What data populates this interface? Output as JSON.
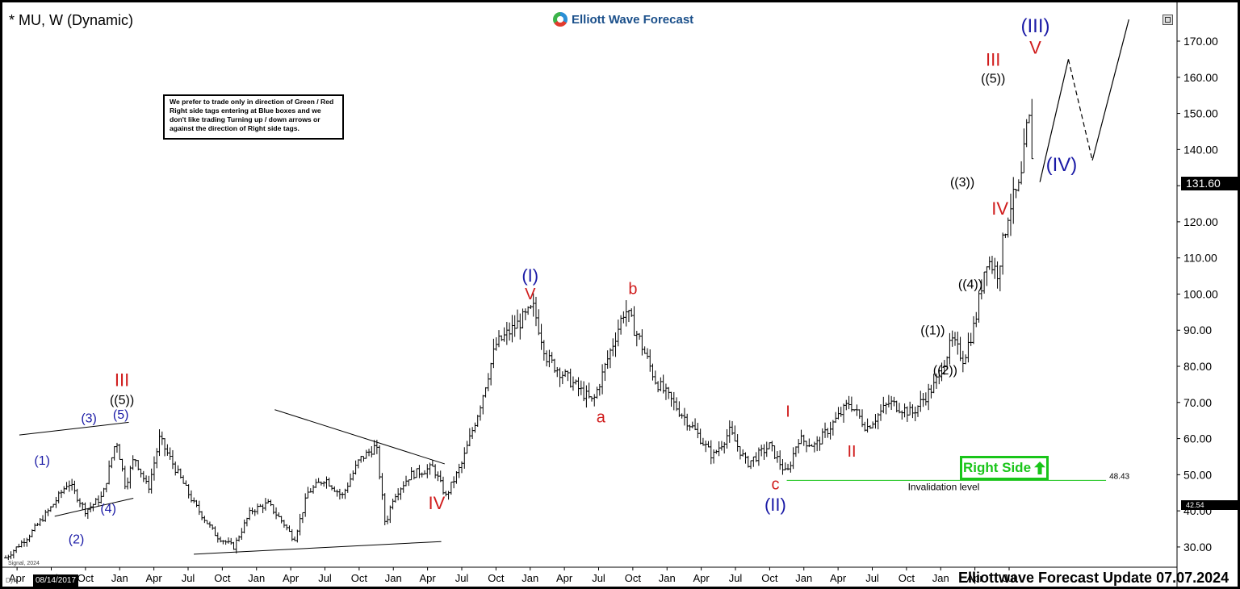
{
  "header": {
    "title": "* MU, W (Dynamic)",
    "brand": "Elliott Wave Forecast"
  },
  "note_text": "We prefer to trade only in direction of Green / Red Right side tags entering at Blue boxes and we don't like trading Turning up / down arrows or against the direction of Right side tags.",
  "right_side_tag": {
    "label": "Right Side",
    "color": "#19c519",
    "level": "48.43"
  },
  "invalidation_label": "Invalidation level",
  "footer": {
    "update": "Elliottwave Forecast Update 07.07.2024",
    "date_box": "08/14/2017",
    "watermark": "Signal, 2024",
    "dyn": "Dyn"
  },
  "price_tags": {
    "last": "131.60",
    "low_marker": "42.54"
  },
  "colors": {
    "wave_blue": "#1a1aa6",
    "wave_red": "#d01c1c",
    "wave_black": "#000000",
    "accent_green": "#19c519",
    "grid_bg": "#ffffff"
  },
  "chart_data": {
    "type": "ohlc",
    "ylim": [
      26,
      176
    ],
    "y_ticks": [
      "30.00",
      "40.00",
      "50.00",
      "60.00",
      "70.00",
      "80.00",
      "90.00",
      "100.00",
      "110.00",
      "120.00",
      "130.00",
      "140.00",
      "150.00",
      "160.00",
      "170.00"
    ],
    "x_ticks": [
      "Apr",
      "Jul",
      "Oct",
      "Jan",
      "Apr",
      "Jul",
      "Oct",
      "Jan",
      "Apr",
      "Jul",
      "Oct",
      "Jan",
      "Apr",
      "Jul",
      "Oct",
      "Jan",
      "Apr",
      "Jul",
      "Oct",
      "Jan",
      "Apr",
      "Jul",
      "Oct",
      "Jan",
      "Apr",
      "Jul",
      "Oct",
      "Jan",
      "Apr",
      "Jul"
    ],
    "x_start": "2017-03",
    "bars_per_month": 4.3,
    "price_path": [
      {
        "m": 0,
        "p": 27
      },
      {
        "m": 2,
        "p": 33
      },
      {
        "m": 4,
        "p": 41
      },
      {
        "m": 5.5,
        "p": 48
      },
      {
        "m": 7,
        "p": 40
      },
      {
        "m": 8.5,
        "p": 44
      },
      {
        "m": 9.7,
        "p": 60
      },
      {
        "m": 10.5,
        "p": 47
      },
      {
        "m": 11.3,
        "p": 55
      },
      {
        "m": 12.5,
        "p": 46
      },
      {
        "m": 13.5,
        "p": 60
      },
      {
        "m": 14.5,
        "p": 54
      },
      {
        "m": 16.5,
        "p": 42
      },
      {
        "m": 18.5,
        "p": 33
      },
      {
        "m": 20,
        "p": 30
      },
      {
        "m": 21.5,
        "p": 40
      },
      {
        "m": 23,
        "p": 42
      },
      {
        "m": 24.5,
        "p": 36
      },
      {
        "m": 25.3,
        "p": 32
      },
      {
        "m": 26.5,
        "p": 45
      },
      {
        "m": 28,
        "p": 49
      },
      {
        "m": 29.5,
        "p": 44
      },
      {
        "m": 31,
        "p": 54
      },
      {
        "m": 32.5,
        "p": 58
      },
      {
        "m": 33.3,
        "p": 36
      },
      {
        "m": 34,
        "p": 44
      },
      {
        "m": 35.5,
        "p": 50
      },
      {
        "m": 37.5,
        "p": 52
      },
      {
        "m": 38.6,
        "p": 44
      },
      {
        "m": 40,
        "p": 53
      },
      {
        "m": 41.5,
        "p": 68
      },
      {
        "m": 43,
        "p": 86
      },
      {
        "m": 45,
        "p": 92
      },
      {
        "m": 46.3,
        "p": 96
      },
      {
        "m": 47.5,
        "p": 82
      },
      {
        "m": 49.5,
        "p": 76
      },
      {
        "m": 51.5,
        "p": 70
      },
      {
        "m": 53,
        "p": 84
      },
      {
        "m": 54.3,
        "p": 96
      },
      {
        "m": 55.5,
        "p": 88
      },
      {
        "m": 57,
        "p": 76
      },
      {
        "m": 59,
        "p": 68
      },
      {
        "m": 60.5,
        "p": 62
      },
      {
        "m": 62,
        "p": 55
      },
      {
        "m": 63.5,
        "p": 62
      },
      {
        "m": 65,
        "p": 53
      },
      {
        "m": 67,
        "p": 58
      },
      {
        "m": 68.5,
        "p": 50
      },
      {
        "m": 69.5,
        "p": 60
      },
      {
        "m": 71,
        "p": 58
      },
      {
        "m": 72.5,
        "p": 64
      },
      {
        "m": 74,
        "p": 70
      },
      {
        "m": 75.5,
        "p": 63
      },
      {
        "m": 77.5,
        "p": 70
      },
      {
        "m": 79.5,
        "p": 67
      },
      {
        "m": 81.5,
        "p": 75
      },
      {
        "m": 83,
        "p": 87
      },
      {
        "m": 84,
        "p": 82
      },
      {
        "m": 85,
        "p": 92
      },
      {
        "m": 86,
        "p": 110
      },
      {
        "m": 87,
        "p": 106
      },
      {
        "m": 88,
        "p": 124
      },
      {
        "m": 89,
        "p": 130
      },
      {
        "m": 89.7,
        "p": 150
      },
      {
        "m": 90.2,
        "p": 132
      }
    ],
    "projection": [
      {
        "m": 90.7,
        "p": 131
      },
      {
        "m": 93.2,
        "p": 165
      },
      {
        "m": 95.3,
        "p": 137
      },
      {
        "m": 98.5,
        "p": 176
      }
    ],
    "trendlines": [
      {
        "from": {
          "m": 1.2,
          "p": 61
        },
        "to": {
          "m": 10.8,
          "p": 64.5
        }
      },
      {
        "from": {
          "m": 4.3,
          "p": 38.5
        },
        "to": {
          "m": 11.2,
          "p": 43.5
        }
      },
      {
        "from": {
          "m": 23.6,
          "p": 68
        },
        "to": {
          "m": 38.5,
          "p": 53
        }
      },
      {
        "from": {
          "m": 16.5,
          "p": 28
        },
        "to": {
          "m": 38.2,
          "p": 31.5
        }
      }
    ],
    "invalidation": {
      "value": 48.43,
      "from_m": 68.5,
      "to_m": 96.5
    },
    "wave_labels": [
      {
        "text": "(1)",
        "m": 3.2,
        "p": 52.8,
        "color": "blue",
        "size": 16
      },
      {
        "text": "(2)",
        "m": 6.2,
        "p": 31.0,
        "color": "blue",
        "size": 16
      },
      {
        "text": "(3)",
        "m": 7.3,
        "p": 64.5,
        "color": "blue",
        "size": 16
      },
      {
        "text": "(4)",
        "m": 9.0,
        "p": 39.5,
        "color": "blue",
        "size": 16
      },
      {
        "text": "(5)",
        "m": 10.1,
        "p": 65.5,
        "color": "blue",
        "size": 16
      },
      {
        "text": "((5))",
        "m": 10.2,
        "p": 69.5,
        "color": "black",
        "size": 16
      },
      {
        "text": "III",
        "m": 10.2,
        "p": 74.5,
        "color": "red",
        "size": 22
      },
      {
        "text": "IV",
        "m": 37.8,
        "p": 40.5,
        "color": "red",
        "size": 22
      },
      {
        "text": "(I)",
        "m": 46.0,
        "p": 103.5,
        "color": "blue",
        "size": 22
      },
      {
        "text": "V",
        "m": 46.0,
        "p": 98.5,
        "color": "red",
        "size": 20
      },
      {
        "text": "a",
        "m": 52.2,
        "p": 64.5,
        "color": "red",
        "size": 20
      },
      {
        "text": "b",
        "m": 55.0,
        "p": 100.0,
        "color": "red",
        "size": 20
      },
      {
        "text": "c",
        "m": 67.5,
        "p": 46.0,
        "color": "red",
        "size": 20
      },
      {
        "text": "(II)",
        "m": 67.5,
        "p": 40.0,
        "color": "blue",
        "size": 22
      },
      {
        "text": "I",
        "m": 68.6,
        "p": 66.0,
        "color": "red",
        "size": 20
      },
      {
        "text": "II",
        "m": 74.2,
        "p": 55.0,
        "color": "red",
        "size": 20
      },
      {
        "text": "((1))",
        "m": 81.3,
        "p": 88.8,
        "color": "black",
        "size": 16
      },
      {
        "text": "((2))",
        "m": 82.4,
        "p": 77.8,
        "color": "black",
        "size": 16
      },
      {
        "text": "((3))",
        "m": 83.9,
        "p": 129.8,
        "color": "black",
        "size": 16
      },
      {
        "text": "((4))",
        "m": 84.6,
        "p": 101.5,
        "color": "black",
        "size": 16
      },
      {
        "text": "((5))",
        "m": 86.6,
        "p": 158.5,
        "color": "black",
        "size": 16
      },
      {
        "text": "III",
        "m": 86.6,
        "p": 163.2,
        "color": "red",
        "size": 22
      },
      {
        "text": "IV",
        "m": 87.2,
        "p": 122.0,
        "color": "red",
        "size": 22
      },
      {
        "text": "(III)",
        "m": 90.3,
        "p": 172.5,
        "color": "blue",
        "size": 24
      },
      {
        "text": "V",
        "m": 90.3,
        "p": 166.5,
        "color": "red",
        "size": 22
      },
      {
        "text": "(IV)",
        "m": 92.6,
        "p": 134.0,
        "color": "blue",
        "size": 24
      }
    ]
  }
}
